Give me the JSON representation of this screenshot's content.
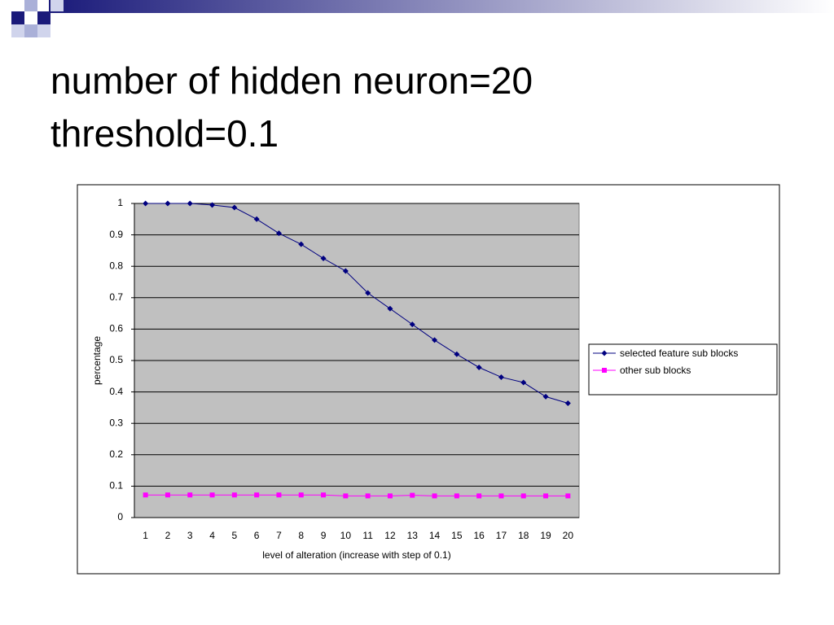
{
  "slide": {
    "title_lines": [
      "number of hidden neuron=20",
      "threshold=0.1"
    ]
  },
  "chart_data": {
    "type": "line",
    "x_label": "level of alteration (increase with step of 0.1)",
    "y_label": "percentage",
    "categories": [
      1,
      2,
      3,
      4,
      5,
      6,
      7,
      8,
      9,
      10,
      11,
      12,
      13,
      14,
      15,
      16,
      17,
      18,
      19,
      20
    ],
    "series": [
      {
        "name": "selected feature sub blocks",
        "color": "#000080",
        "marker": "diamond",
        "values": [
          1.0,
          1.0,
          1.0,
          0.995,
          0.987,
          0.95,
          0.905,
          0.87,
          0.825,
          0.785,
          0.715,
          0.665,
          0.615,
          0.565,
          0.52,
          0.478,
          0.447,
          0.43,
          0.385,
          0.364
        ]
      },
      {
        "name": "other sub blocks",
        "color": "#ff00ff",
        "marker": "square",
        "values": [
          0.072,
          0.072,
          0.072,
          0.072,
          0.072,
          0.072,
          0.072,
          0.072,
          0.072,
          0.069,
          0.069,
          0.069,
          0.071,
          0.069,
          0.069,
          0.069,
          0.069,
          0.069,
          0.069,
          0.069
        ]
      }
    ],
    "ylim": [
      0,
      1
    ],
    "yticks": [
      0,
      0.1,
      0.2,
      0.3,
      0.4,
      0.5,
      0.6,
      0.7,
      0.8,
      0.9,
      1
    ],
    "grid": true,
    "plot_background": "#c0c0c0",
    "legend": "right"
  }
}
